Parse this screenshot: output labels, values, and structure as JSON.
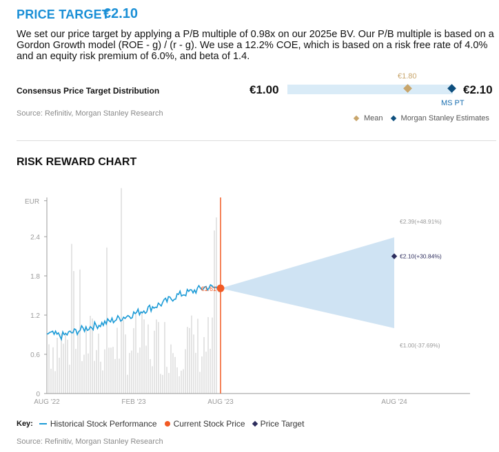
{
  "header": {
    "label": "PRICE TARGET",
    "value": "€2.10",
    "description": "We set our price target by applying a P/B multiple of 0.98x on our 2025e BV. Our P/B multiple is based on a Gordon Growth model (ROE - g) / (r - g). We use a 12.2% COE, which is based on a risk free rate of 4.0% and an equity risk premium of 6.0%, and beta of 1.4."
  },
  "consensus": {
    "label": "Consensus Price Target Distribution",
    "low": "€1.00",
    "high": "€2.10",
    "mean_label": "€1.80",
    "ms_label": "MS PT",
    "range": [
      1.0,
      2.1
    ],
    "mean": 1.8,
    "ms_pt": 2.1,
    "source": "Source: Refinitiv, Morgan Stanley Research",
    "legend": {
      "mean": "Mean",
      "ms": "Morgan Stanley Estimates"
    },
    "colors": {
      "bar": "#d9ebf7",
      "mean": "#c8a56b",
      "ms": "#0e4f7e"
    }
  },
  "risk_reward": {
    "title": "RISK REWARD CHART",
    "key_label": "Key:",
    "key_items": [
      "Historical Stock Performance",
      "Current Stock Price",
      "Price Target"
    ],
    "source": "Source: Refinitiv, Morgan Stanley Research",
    "colors": {
      "line": "#1a9ad6",
      "current": "#f25a24",
      "target": "#2e2e5e",
      "cone": "#cfe3f3",
      "volume": "#e4e4e4"
    }
  },
  "chart_data": {
    "type": "line",
    "ylabel": "EUR",
    "ylim": [
      0,
      3.0
    ],
    "y_ticks": [
      "0",
      "0.6",
      "1.2",
      "1.8",
      "2.4"
    ],
    "y_tick_values": [
      0,
      0.6,
      1.2,
      1.8,
      2.4
    ],
    "x_ticks": [
      "AUG '22",
      "FEB '23",
      "AUG '23",
      "AUG '24"
    ],
    "x_tick_values": [
      "2022-08",
      "2023-02",
      "2023-08",
      "2024-08"
    ],
    "series": [
      {
        "name": "Historical Stock Performance",
        "x": [
          "2022-08",
          "2022-09",
          "2022-10",
          "2022-11",
          "2022-12",
          "2023-01",
          "2023-02",
          "2023-03",
          "2023-04",
          "2023-05",
          "2023-06",
          "2023-07",
          "2023-08"
        ],
        "values": [
          0.92,
          0.88,
          0.95,
          1.02,
          1.08,
          1.15,
          1.22,
          1.3,
          1.38,
          1.5,
          1.56,
          1.63,
          1.61
        ]
      }
    ],
    "current_price": {
      "x": "2023-08",
      "value": 1.61,
      "label": "€1.61"
    },
    "scenarios": [
      {
        "name": "Bull",
        "x": "2024-08",
        "value": 2.39,
        "label": "€2.39(+48.91%)"
      },
      {
        "name": "Price Target",
        "x": "2024-08",
        "value": 2.1,
        "label": "€2.10(+30.84%)"
      },
      {
        "name": "Bear",
        "x": "2024-08",
        "value": 1.0,
        "label": "€1.00(-37.69%)"
      }
    ]
  }
}
